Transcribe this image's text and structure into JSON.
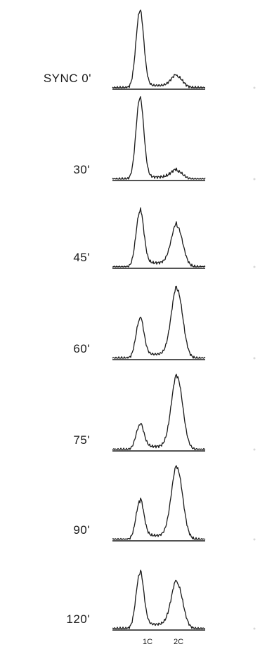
{
  "chart_data": {
    "type": "line",
    "x_tick_labels": [
      "1C",
      "2C"
    ],
    "panels": [
      {
        "label": "SYNC  0'",
        "peak_1C": 0.95,
        "peak_2C": 0.14
      },
      {
        "label": "30'",
        "peak_1C": 1.0,
        "peak_2C": 0.1
      },
      {
        "label": "45'",
        "peak_1C": 0.68,
        "peak_2C": 0.5
      },
      {
        "label": "60'",
        "peak_1C": 0.48,
        "peak_2C": 0.85
      },
      {
        "label": "75'",
        "peak_1C": 0.3,
        "peak_2C": 0.9
      },
      {
        "label": "90'",
        "peak_1C": 0.47,
        "peak_2C": 0.88
      },
      {
        "label": "120'",
        "peak_1C": 0.68,
        "peak_2C": 0.56
      }
    ]
  }
}
